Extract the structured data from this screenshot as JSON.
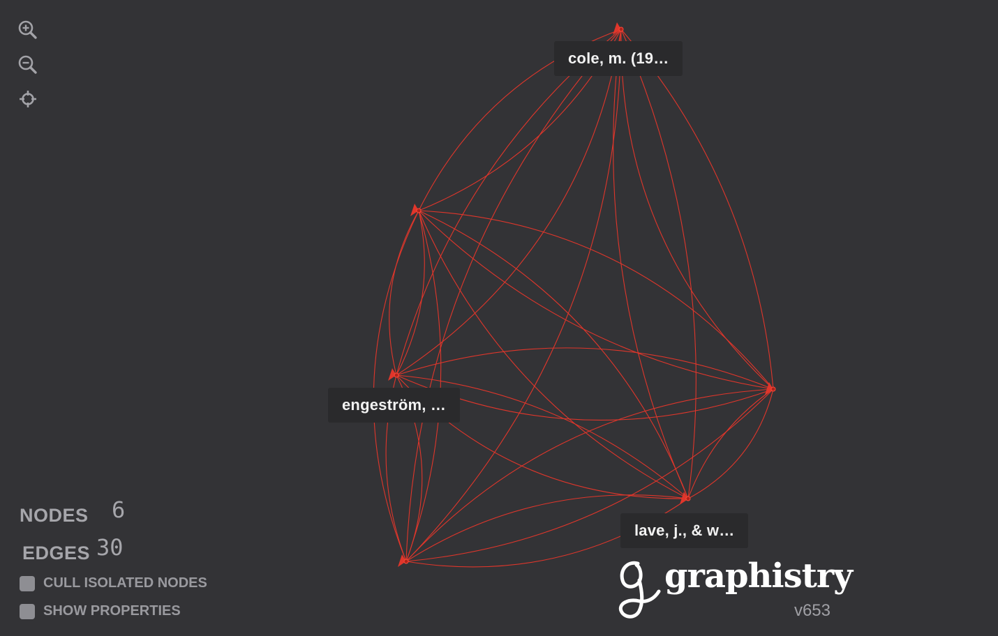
{
  "toolbar": {
    "zoom_in": "zoom-in-icon",
    "zoom_out": "zoom-out-icon",
    "center": "crosshair-icon"
  },
  "graph": {
    "edge_color": "#e0362b",
    "nodes": [
      {
        "id": "cole",
        "label": "cole, m. (19…"
      },
      {
        "id": "engestrom_a",
        "label": ""
      },
      {
        "id": "engestrom",
        "label": "engeström, …"
      },
      {
        "id": "n4",
        "label": ""
      },
      {
        "id": "n5",
        "label": ""
      },
      {
        "id": "lave",
        "label": "lave, j., & w…"
      }
    ]
  },
  "stats": {
    "nodes_label": "NODES",
    "nodes_value": "6",
    "edges_label": "EDGES",
    "edges_value": "30"
  },
  "options": {
    "cull_label": "CULL ISOLATED NODES",
    "props_label": "SHOW PROPERTIES"
  },
  "brand": {
    "name": "graphistry",
    "version": "v653"
  }
}
